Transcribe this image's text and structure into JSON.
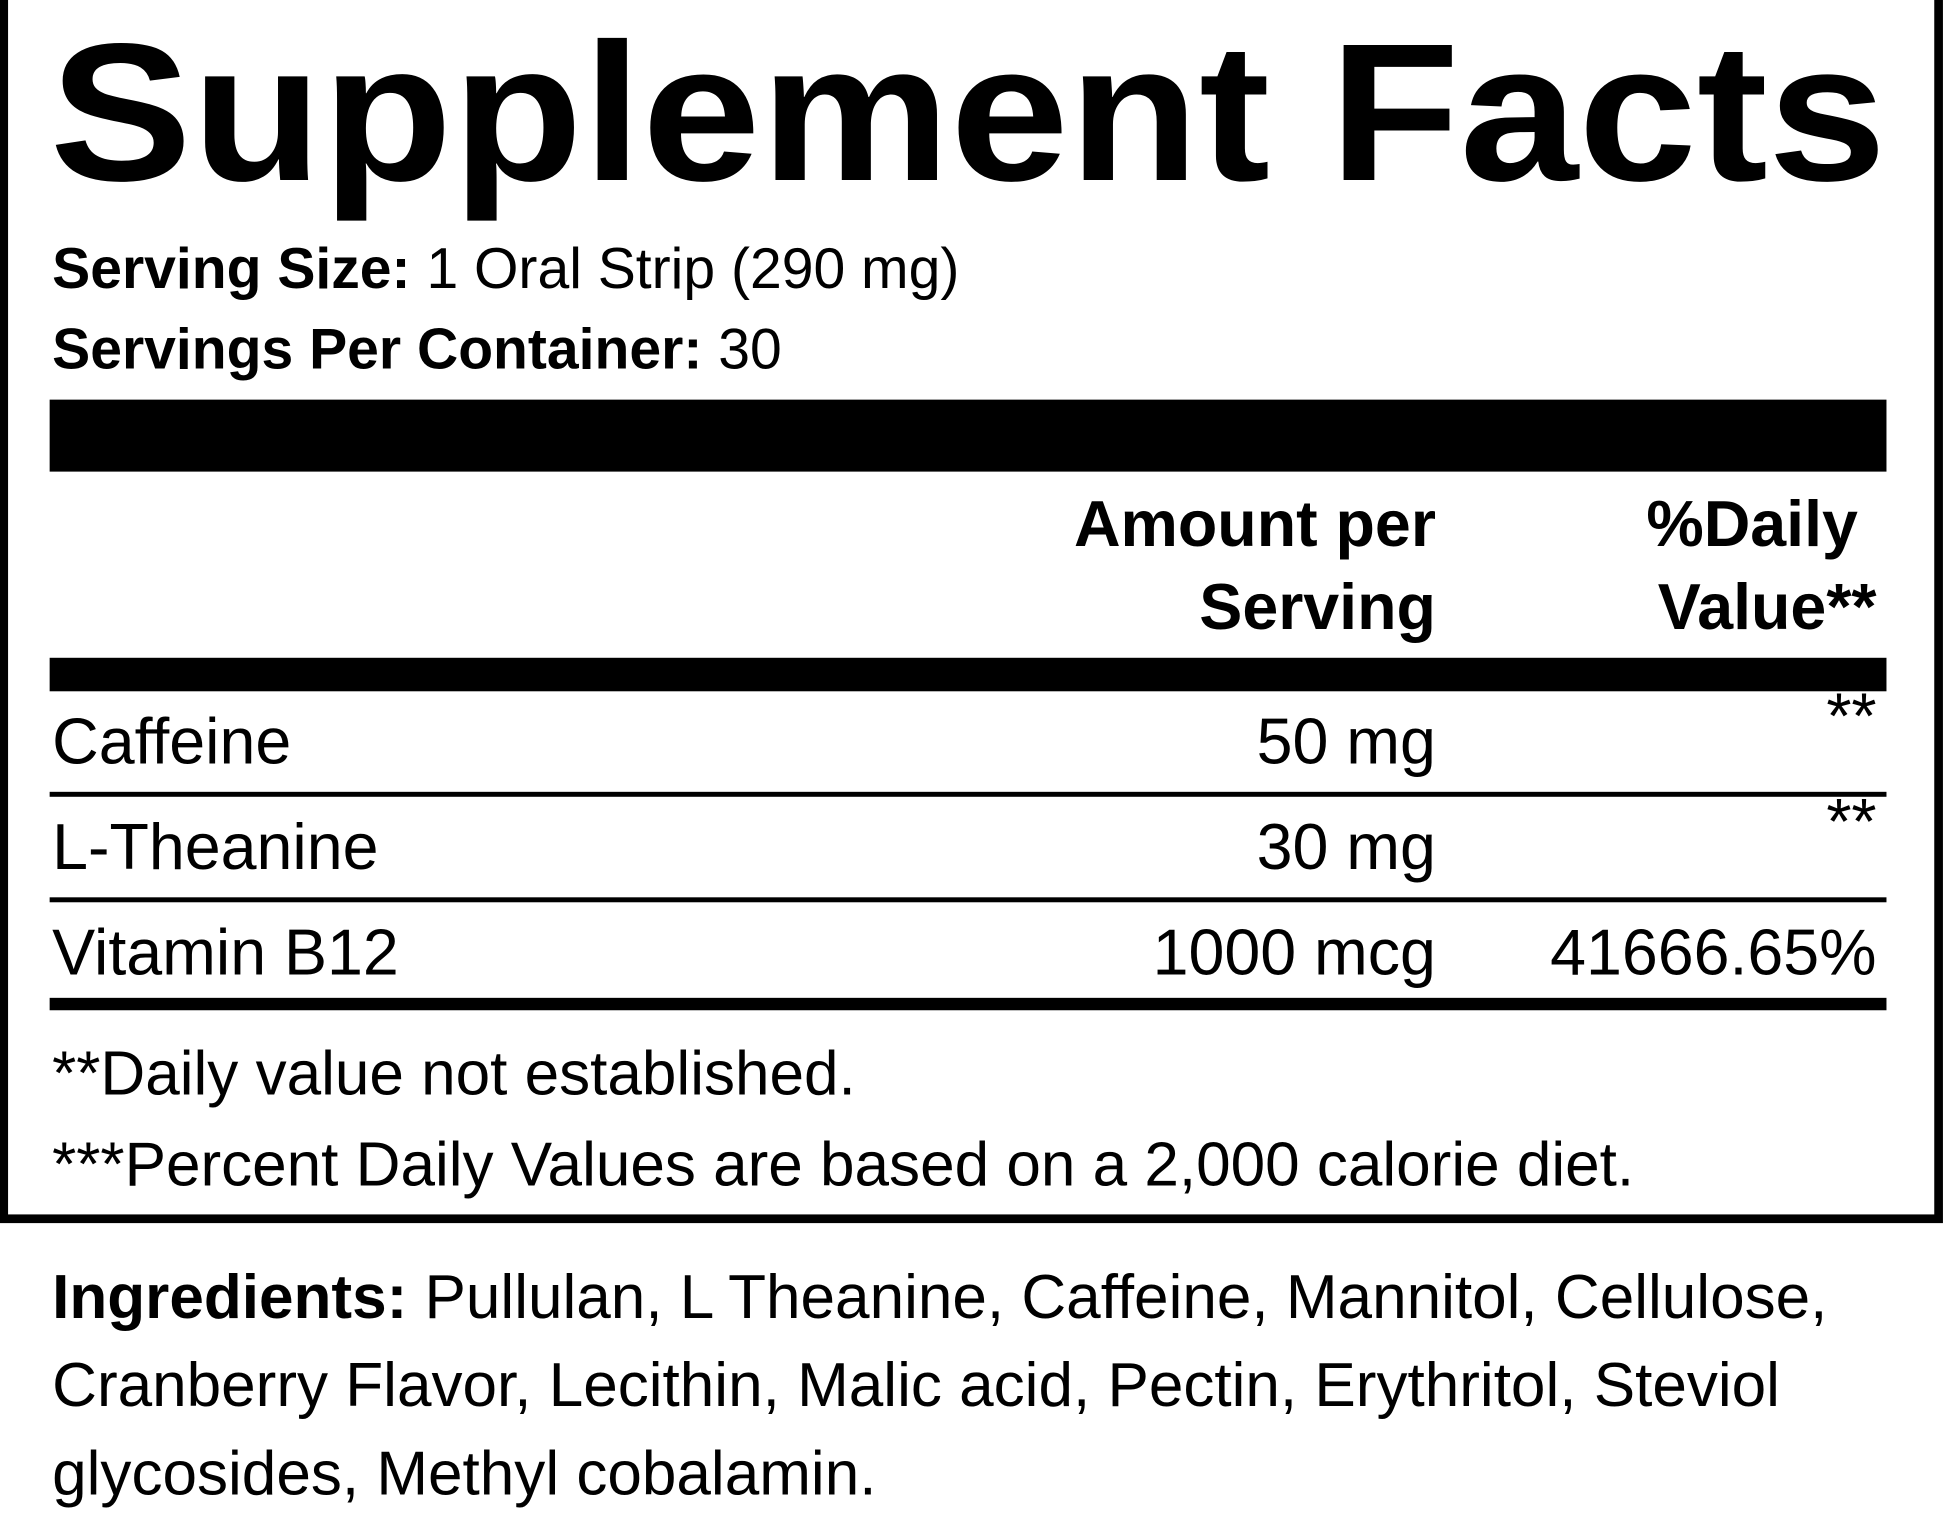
{
  "header": {
    "title": "Supplement Facts",
    "serving_size": {
      "label": "Serving Size:",
      "value": "1 Oral Strip (290 mg)"
    },
    "servings_per_container": {
      "label": "Servings Per Container:",
      "value": "30"
    }
  },
  "table": {
    "columns": [
      "Amount per",
      "Serving",
      "%Daily",
      "Value**"
    ],
    "rows": [
      [
        "Caffeine",
        "50 mg",
        "**"
      ],
      [
        "L-Theanine",
        "30 mg",
        "**"
      ],
      [
        "Vitamin B12",
        "1000 mcg",
        "41666.65%"
      ]
    ]
  },
  "footnotes": [
    "**Daily value not established.",
    "***Percent Daily Values are based on a 2,000 calorie diet."
  ],
  "ingredients": {
    "label": "Ingredients:",
    "text": "Pullulan, L Theanine, Caffeine, Mannitol, Cellulose, Cranberry Flavor, Lecithin, Malic acid, Pectin, Erythritol, Steviol glycosides, Methyl cobalamin."
  }
}
